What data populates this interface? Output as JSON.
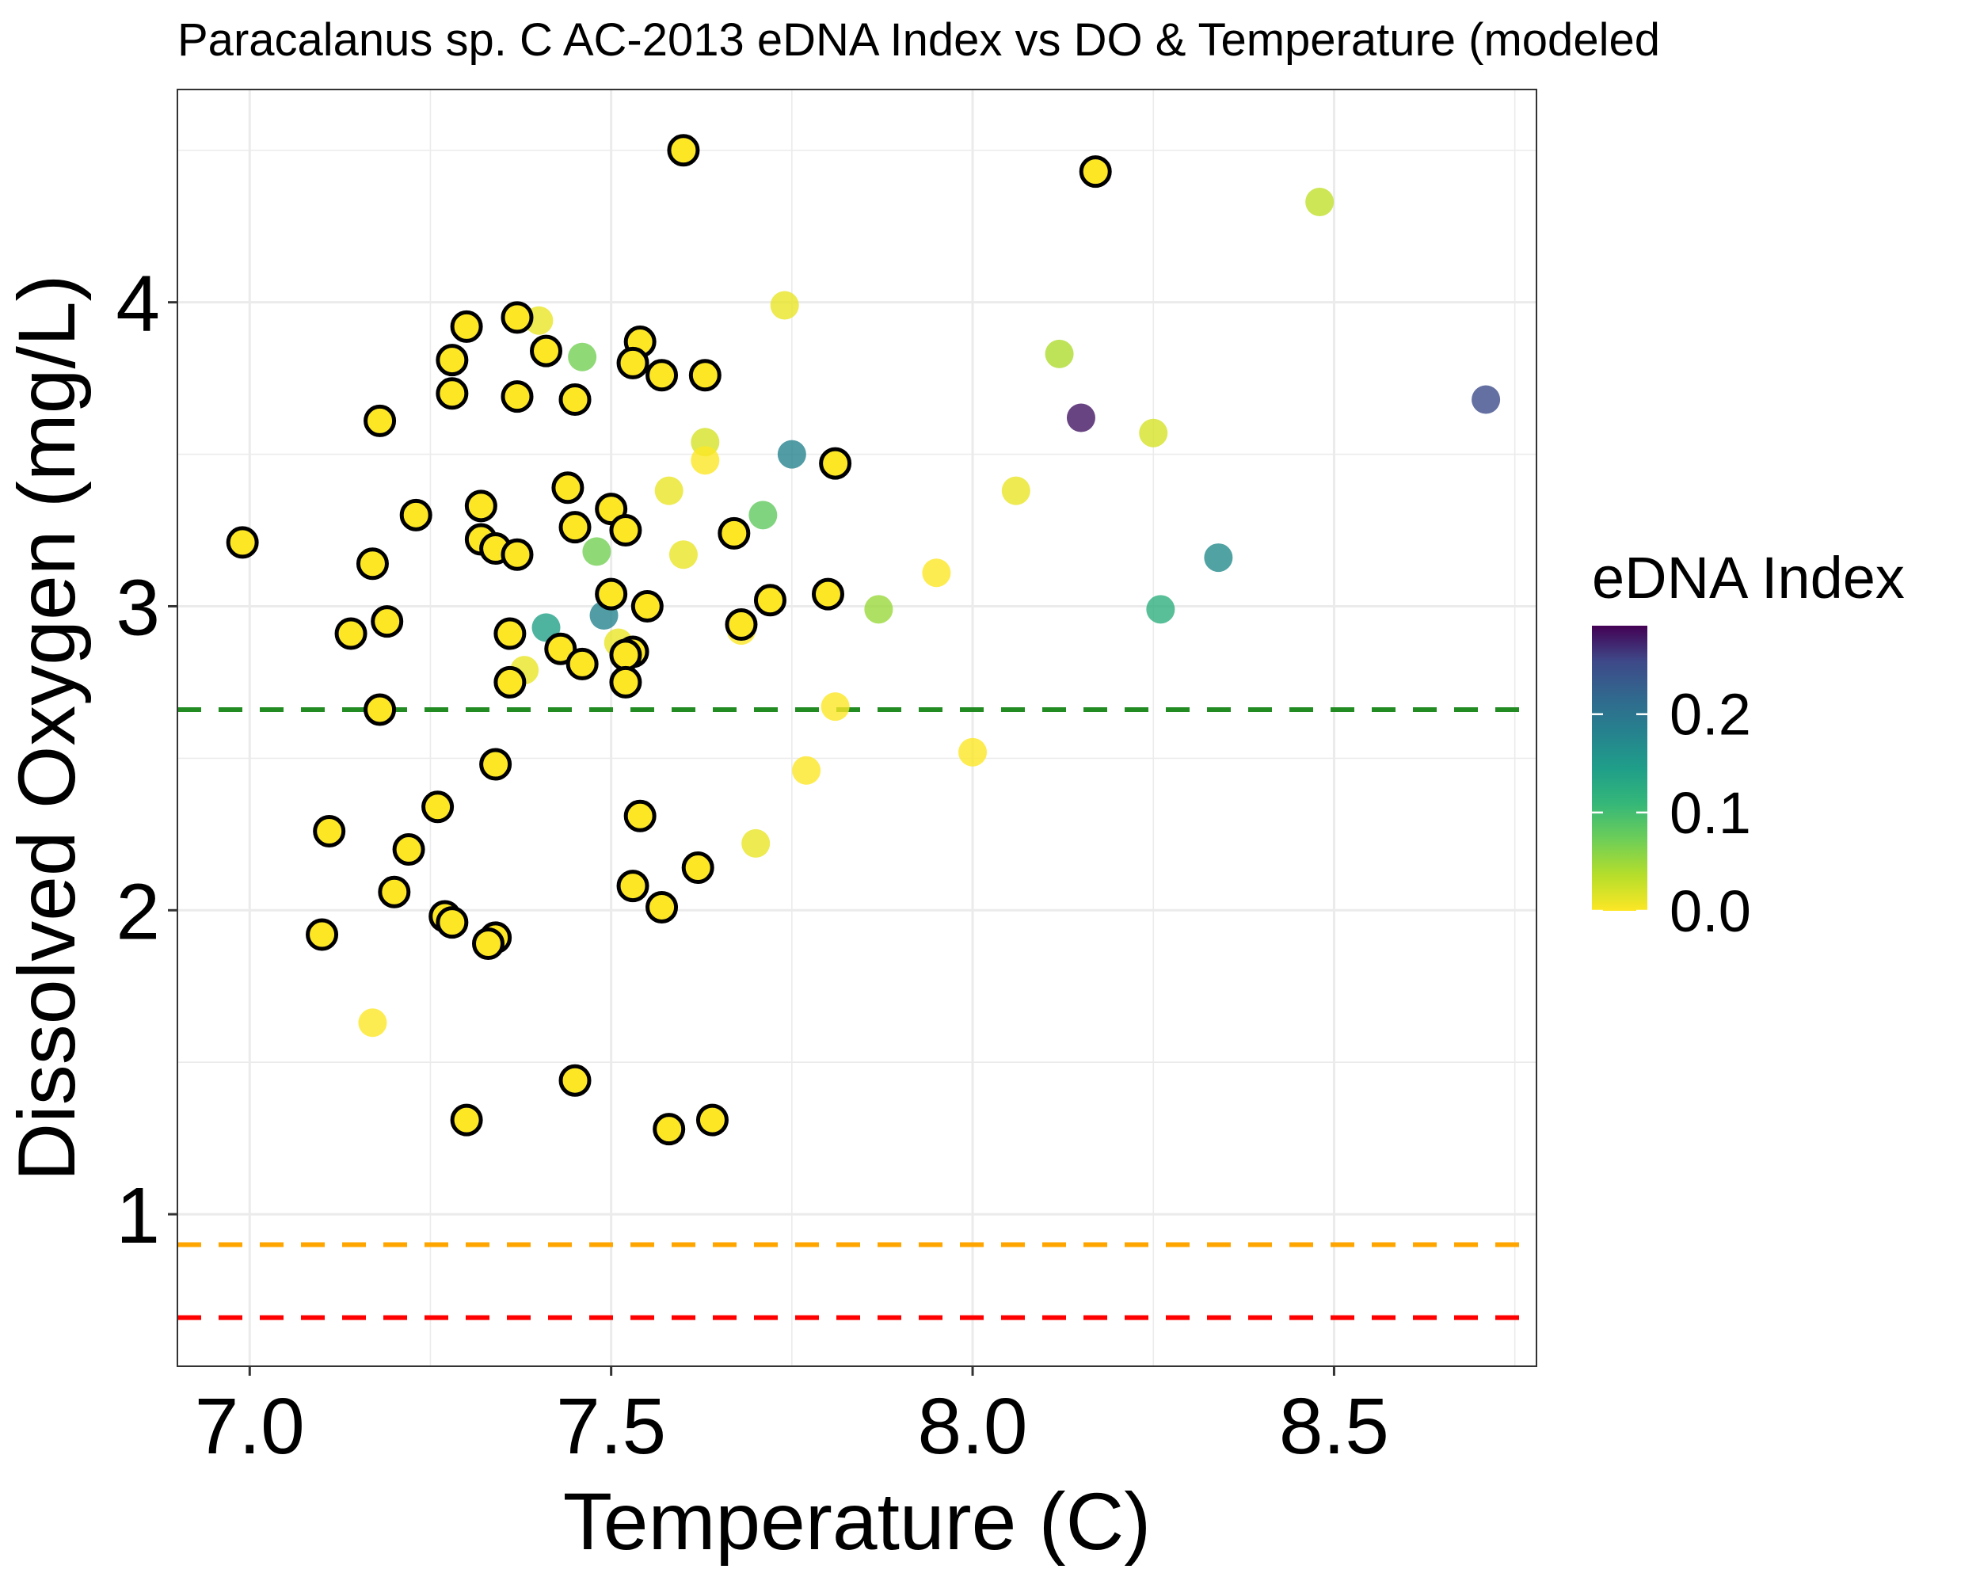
{
  "chart_data": {
    "type": "scatter",
    "title": "Paracalanus sp. C AC-2013 eDNA Index vs DO & Temperature (modeled",
    "xlabel": "Temperature (C)",
    "ylabel": "Dissolved Oxygen (mg/L)",
    "xlim": [
      6.9,
      8.78
    ],
    "ylim": [
      0.5,
      4.7
    ],
    "x_ticks": [
      7.0,
      7.5,
      8.0,
      8.5
    ],
    "x_tick_labels": [
      "7.0",
      "7.5",
      "8.0",
      "8.5"
    ],
    "y_ticks": [
      1,
      2,
      3,
      4
    ],
    "y_tick_labels": [
      "1",
      "2",
      "3",
      "4"
    ],
    "grid": true,
    "reference_lines": [
      {
        "y": 2.66,
        "color": "#228b22",
        "style": "dashed"
      },
      {
        "y": 0.9,
        "color": "#ffa500",
        "style": "dashed"
      },
      {
        "y": 0.66,
        "color": "#ff0000",
        "style": "dashed"
      }
    ],
    "legend": {
      "title": "eDNA Index",
      "placement": "right",
      "colormap": "viridis (reversed: 0 = yellow, max = purple)",
      "range": [
        0,
        0.29
      ],
      "tick_values": [
        0.0,
        0.1,
        0.2
      ],
      "tick_labels": [
        "0.0",
        "0.1",
        "0.2"
      ]
    },
    "series": [
      {
        "marker": "outlined",
        "points": [
          {
            "x": 7.6,
            "y": 4.5,
            "v": 0
          },
          {
            "x": 8.17,
            "y": 4.43,
            "v": 0
          },
          {
            "x": 7.37,
            "y": 3.95,
            "v": 0
          },
          {
            "x": 7.3,
            "y": 3.92,
            "v": 0
          },
          {
            "x": 7.54,
            "y": 3.87,
            "v": 0
          },
          {
            "x": 7.41,
            "y": 3.84,
            "v": 0
          },
          {
            "x": 7.28,
            "y": 3.81,
            "v": 0
          },
          {
            "x": 7.53,
            "y": 3.8,
            "v": 0
          },
          {
            "x": 7.57,
            "y": 3.76,
            "v": 0
          },
          {
            "x": 7.63,
            "y": 3.76,
            "v": 0
          },
          {
            "x": 7.28,
            "y": 3.7,
            "v": 0
          },
          {
            "x": 7.37,
            "y": 3.69,
            "v": 0
          },
          {
            "x": 7.45,
            "y": 3.68,
            "v": 0
          },
          {
            "x": 7.18,
            "y": 3.61,
            "v": 0
          },
          {
            "x": 7.81,
            "y": 3.47,
            "v": 0
          },
          {
            "x": 7.44,
            "y": 3.39,
            "v": 0
          },
          {
            "x": 7.32,
            "y": 3.33,
            "v": 0
          },
          {
            "x": 7.5,
            "y": 3.32,
            "v": 0
          },
          {
            "x": 7.23,
            "y": 3.3,
            "v": 0
          },
          {
            "x": 7.45,
            "y": 3.26,
            "v": 0
          },
          {
            "x": 7.52,
            "y": 3.25,
            "v": 0
          },
          {
            "x": 7.67,
            "y": 3.24,
            "v": 0
          },
          {
            "x": 6.99,
            "y": 3.21,
            "v": 0
          },
          {
            "x": 7.32,
            "y": 3.22,
            "v": 0
          },
          {
            "x": 7.34,
            "y": 3.19,
            "v": 0
          },
          {
            "x": 7.37,
            "y": 3.17,
            "v": 0
          },
          {
            "x": 7.17,
            "y": 3.14,
            "v": 0
          },
          {
            "x": 7.5,
            "y": 3.04,
            "v": 0
          },
          {
            "x": 7.8,
            "y": 3.04,
            "v": 0
          },
          {
            "x": 7.72,
            "y": 3.02,
            "v": 0
          },
          {
            "x": 7.55,
            "y": 3.0,
            "v": 0
          },
          {
            "x": 7.19,
            "y": 2.95,
            "v": 0
          },
          {
            "x": 7.68,
            "y": 2.94,
            "v": 0
          },
          {
            "x": 7.14,
            "y": 2.91,
            "v": 0
          },
          {
            "x": 7.36,
            "y": 2.91,
            "v": 0
          },
          {
            "x": 7.43,
            "y": 2.86,
            "v": 0
          },
          {
            "x": 7.53,
            "y": 2.85,
            "v": 0
          },
          {
            "x": 7.52,
            "y": 2.84,
            "v": 0
          },
          {
            "x": 7.46,
            "y": 2.81,
            "v": 0
          },
          {
            "x": 7.52,
            "y": 2.75,
            "v": 0
          },
          {
            "x": 7.36,
            "y": 2.75,
            "v": 0
          },
          {
            "x": 7.18,
            "y": 2.66,
            "v": 0
          },
          {
            "x": 7.34,
            "y": 2.48,
            "v": 0
          },
          {
            "x": 7.26,
            "y": 2.34,
            "v": 0
          },
          {
            "x": 7.54,
            "y": 2.31,
            "v": 0
          },
          {
            "x": 7.11,
            "y": 2.26,
            "v": 0
          },
          {
            "x": 7.22,
            "y": 2.2,
            "v": 0
          },
          {
            "x": 7.62,
            "y": 2.14,
            "v": 0
          },
          {
            "x": 7.53,
            "y": 2.08,
            "v": 0
          },
          {
            "x": 7.2,
            "y": 2.06,
            "v": 0
          },
          {
            "x": 7.57,
            "y": 2.01,
            "v": 0
          },
          {
            "x": 7.27,
            "y": 1.98,
            "v": 0
          },
          {
            "x": 7.28,
            "y": 1.96,
            "v": 0
          },
          {
            "x": 7.1,
            "y": 1.92,
            "v": 0
          },
          {
            "x": 7.34,
            "y": 1.91,
            "v": 0
          },
          {
            "x": 7.33,
            "y": 1.89,
            "v": 0
          },
          {
            "x": 7.45,
            "y": 1.44,
            "v": 0
          },
          {
            "x": 7.3,
            "y": 1.31,
            "v": 0
          },
          {
            "x": 7.64,
            "y": 1.31,
            "v": 0
          },
          {
            "x": 7.58,
            "y": 1.28,
            "v": 0
          }
        ]
      },
      {
        "marker": "plain",
        "points": [
          {
            "x": 8.48,
            "y": 4.33,
            "v": 0.03
          },
          {
            "x": 7.74,
            "y": 3.99,
            "v": 0.01
          },
          {
            "x": 7.4,
            "y": 3.94,
            "v": 0.01
          },
          {
            "x": 8.12,
            "y": 3.83,
            "v": 0.04
          },
          {
            "x": 7.46,
            "y": 3.82,
            "v": 0.07
          },
          {
            "x": 8.71,
            "y": 3.68,
            "v": 0.25
          },
          {
            "x": 8.15,
            "y": 3.62,
            "v": 0.28
          },
          {
            "x": 8.25,
            "y": 3.57,
            "v": 0.02
          },
          {
            "x": 7.63,
            "y": 3.54,
            "v": 0.02
          },
          {
            "x": 7.75,
            "y": 3.5,
            "v": 0.18
          },
          {
            "x": 7.63,
            "y": 3.48,
            "v": 0.0
          },
          {
            "x": 7.58,
            "y": 3.38,
            "v": 0.01
          },
          {
            "x": 8.06,
            "y": 3.38,
            "v": 0.01
          },
          {
            "x": 7.71,
            "y": 3.3,
            "v": 0.08
          },
          {
            "x": 7.6,
            "y": 3.17,
            "v": 0.01
          },
          {
            "x": 7.48,
            "y": 3.18,
            "v": 0.07
          },
          {
            "x": 8.34,
            "y": 3.16,
            "v": 0.17
          },
          {
            "x": 7.95,
            "y": 3.11,
            "v": 0.0
          },
          {
            "x": 8.26,
            "y": 2.99,
            "v": 0.12
          },
          {
            "x": 7.87,
            "y": 2.99,
            "v": 0.05
          },
          {
            "x": 7.49,
            "y": 2.97,
            "v": 0.18
          },
          {
            "x": 7.41,
            "y": 2.93,
            "v": 0.14
          },
          {
            "x": 7.68,
            "y": 2.92,
            "v": 0.0
          },
          {
            "x": 7.51,
            "y": 2.88,
            "v": 0.01
          },
          {
            "x": 7.38,
            "y": 2.79,
            "v": 0.01
          },
          {
            "x": 7.81,
            "y": 2.67,
            "v": 0.0
          },
          {
            "x": 8.0,
            "y": 2.52,
            "v": 0.0
          },
          {
            "x": 7.77,
            "y": 2.46,
            "v": 0.0
          },
          {
            "x": 7.7,
            "y": 2.22,
            "v": 0.01
          },
          {
            "x": 7.17,
            "y": 1.63,
            "v": 0.0
          }
        ]
      }
    ]
  }
}
